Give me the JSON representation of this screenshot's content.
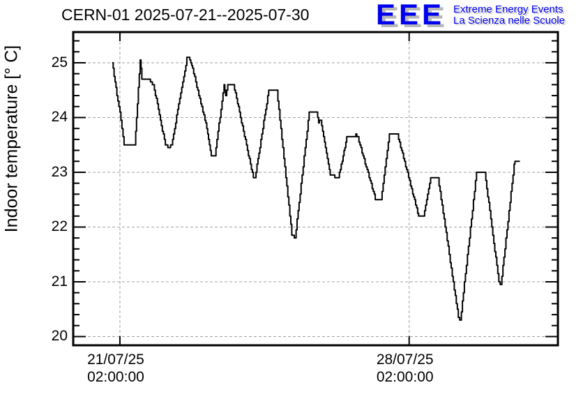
{
  "header": {
    "title": "CERN-01 2025-07-21--2025-07-30"
  },
  "logo": {
    "acronym": "EEE",
    "line1": "Extreme Energy Events",
    "line2": "La Scienza nelle Scuole",
    "color": "#0000ee",
    "shadow_color": "#b9b9b9"
  },
  "chart_data": {
    "type": "line",
    "title": "CERN-01 2025-07-21--2025-07-30",
    "xlabel": "",
    "ylabel": "Indoor temperature [° C]",
    "x_unit": "days since 21/07/25 02:00:00",
    "xlim": [
      -1.13,
      10.6
    ],
    "ylim": [
      19.84,
      25.56
    ],
    "grid": {
      "style": "dashed",
      "color": "#a0a0a0"
    },
    "x_ticks": [
      {
        "t": 0,
        "lines": [
          "21/07/25",
          "02:00:00"
        ]
      },
      {
        "t": 7,
        "lines": [
          "28/07/25",
          "02:00:00"
        ]
      }
    ],
    "y_ticks": [
      20,
      21,
      22,
      23,
      24,
      25
    ],
    "y_minor_step": 0.2,
    "series": [
      {
        "name": "indoor-temperature",
        "color": "#000000",
        "step_quantization_deg": 0.05,
        "points": [
          [
            -0.186,
            25.0
          ],
          [
            -0.05,
            24.3
          ],
          [
            0.0,
            24.1
          ],
          [
            0.1,
            23.5
          ],
          [
            0.36,
            23.5
          ],
          [
            0.49,
            25.05
          ],
          [
            0.53,
            24.72
          ],
          [
            0.69,
            24.7
          ],
          [
            0.81,
            24.6
          ],
          [
            1.1,
            23.5
          ],
          [
            1.18,
            23.45
          ],
          [
            1.25,
            23.5
          ],
          [
            1.62,
            25.08
          ],
          [
            1.67,
            25.08
          ],
          [
            1.76,
            24.9
          ],
          [
            1.91,
            24.4
          ],
          [
            2.08,
            23.9
          ],
          [
            2.21,
            23.3
          ],
          [
            2.3,
            23.3
          ],
          [
            2.52,
            24.6
          ],
          [
            2.56,
            24.4
          ],
          [
            2.61,
            24.62
          ],
          [
            2.75,
            24.6
          ],
          [
            3.23,
            22.9
          ],
          [
            3.27,
            22.9
          ],
          [
            3.6,
            24.5
          ],
          [
            3.8,
            24.5
          ],
          [
            4.16,
            21.85
          ],
          [
            4.24,
            21.8
          ],
          [
            4.58,
            24.1
          ],
          [
            4.76,
            24.1
          ],
          [
            4.81,
            23.92
          ],
          [
            4.86,
            23.95
          ],
          [
            5.09,
            22.95
          ],
          [
            5.29,
            22.9
          ],
          [
            5.49,
            23.63
          ],
          [
            5.68,
            23.63
          ],
          [
            5.71,
            23.7
          ],
          [
            5.76,
            23.63
          ],
          [
            6.18,
            22.52
          ],
          [
            6.32,
            22.5
          ],
          [
            6.52,
            23.68
          ],
          [
            6.72,
            23.68
          ],
          [
            7.23,
            22.2
          ],
          [
            7.35,
            22.2
          ],
          [
            7.52,
            22.9
          ],
          [
            7.7,
            22.9
          ],
          [
            8.19,
            20.35
          ],
          [
            8.24,
            20.3
          ],
          [
            8.63,
            23.0
          ],
          [
            8.83,
            23.0
          ],
          [
            9.17,
            21.0
          ],
          [
            9.22,
            20.95
          ],
          [
            9.54,
            23.13
          ],
          [
            9.56,
            23.2
          ],
          [
            9.68,
            23.2
          ]
        ]
      }
    ]
  }
}
